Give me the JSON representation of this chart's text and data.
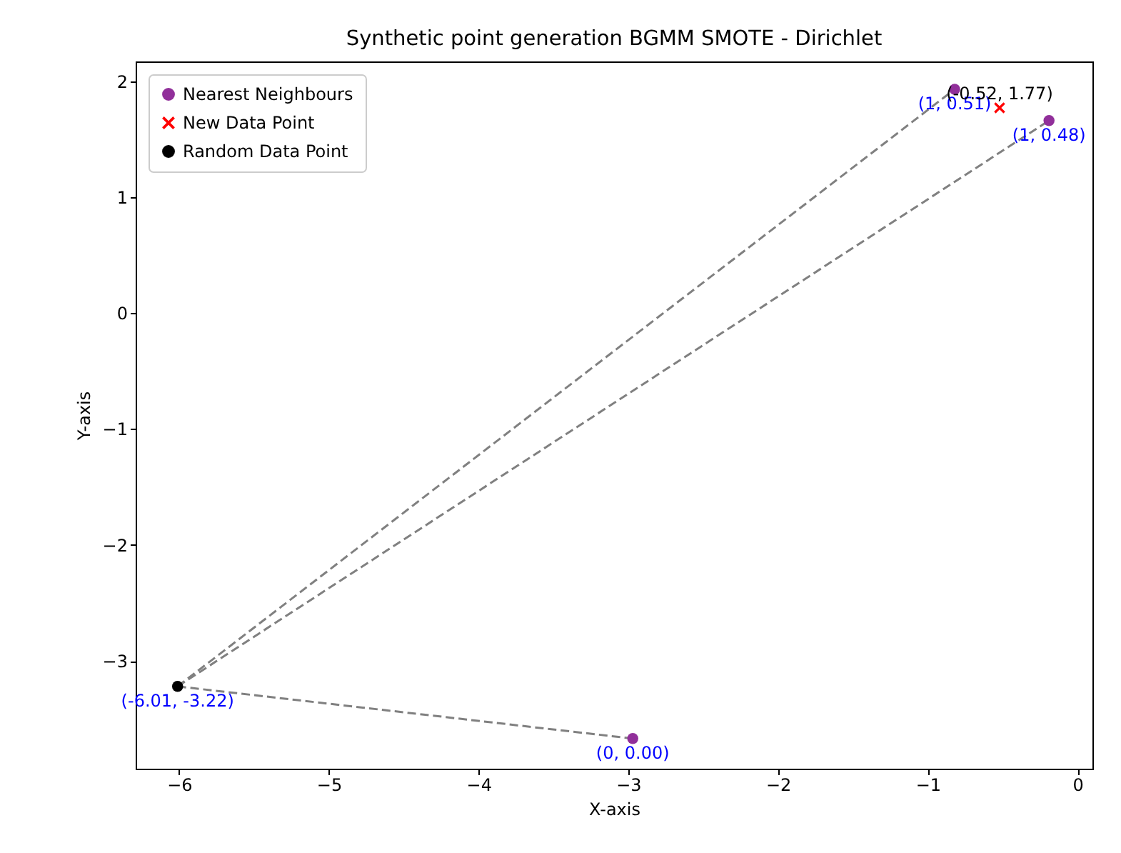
{
  "chart_data": {
    "type": "scatter",
    "title": "Synthetic point generation BGMM SMOTE - Dirichlet",
    "xlabel": "X-axis",
    "ylabel": "Y-axis",
    "xlim": [
      -6.29,
      0.1
    ],
    "ylim": [
      -3.93,
      2.17
    ],
    "xticks": [
      -6,
      -5,
      -4,
      -3,
      -2,
      -1,
      0
    ],
    "yticks": [
      -3,
      -2,
      -1,
      0,
      1,
      2
    ],
    "grid": false,
    "legend": "top left",
    "series": [
      {
        "type": "line",
        "color": "#808080",
        "line_style": "dashed",
        "marker": "none",
        "x": [
          -6.01,
          -0.82
        ],
        "values": [
          -3.22,
          1.93
        ]
      },
      {
        "type": "line",
        "color": "#808080",
        "line_style": "dashed",
        "marker": "none",
        "x": [
          -6.01,
          -0.19
        ],
        "values": [
          -3.22,
          1.66
        ]
      },
      {
        "type": "line",
        "color": "#808080",
        "line_style": "dashed",
        "marker": "none",
        "x": [
          -6.01,
          -2.97
        ],
        "values": [
          -3.22,
          -3.67
        ]
      },
      {
        "name": "Nearest Neighbours",
        "color": "#912f9a",
        "marker": "circle",
        "x": [
          -0.82,
          -0.19,
          -2.97
        ],
        "values": [
          1.93,
          1.66,
          -3.67
        ]
      },
      {
        "name": "New Data Point",
        "color": "#ff0000",
        "marker": "cross",
        "x": [
          -0.52
        ],
        "values": [
          1.77
        ]
      },
      {
        "name": "Random Data Point",
        "color": "#000000",
        "marker": "circle",
        "x": [
          -6.01
        ],
        "values": [
          -3.22
        ]
      }
    ],
    "annotations": [
      {
        "text": "(-0.52, 1.77)",
        "x": -0.52,
        "y": 1.77
      },
      {
        "text": "(1, 0.51)",
        "x": -0.82,
        "y": 1.93
      },
      {
        "text": "(1, 0.48)",
        "x": -0.19,
        "y": 1.66
      },
      {
        "text": "(0, 0.00)",
        "x": -2.97,
        "y": -3.67
      },
      {
        "text": "(-6.01, -3.22)",
        "x": -6.01,
        "y": -3.22
      }
    ]
  }
}
